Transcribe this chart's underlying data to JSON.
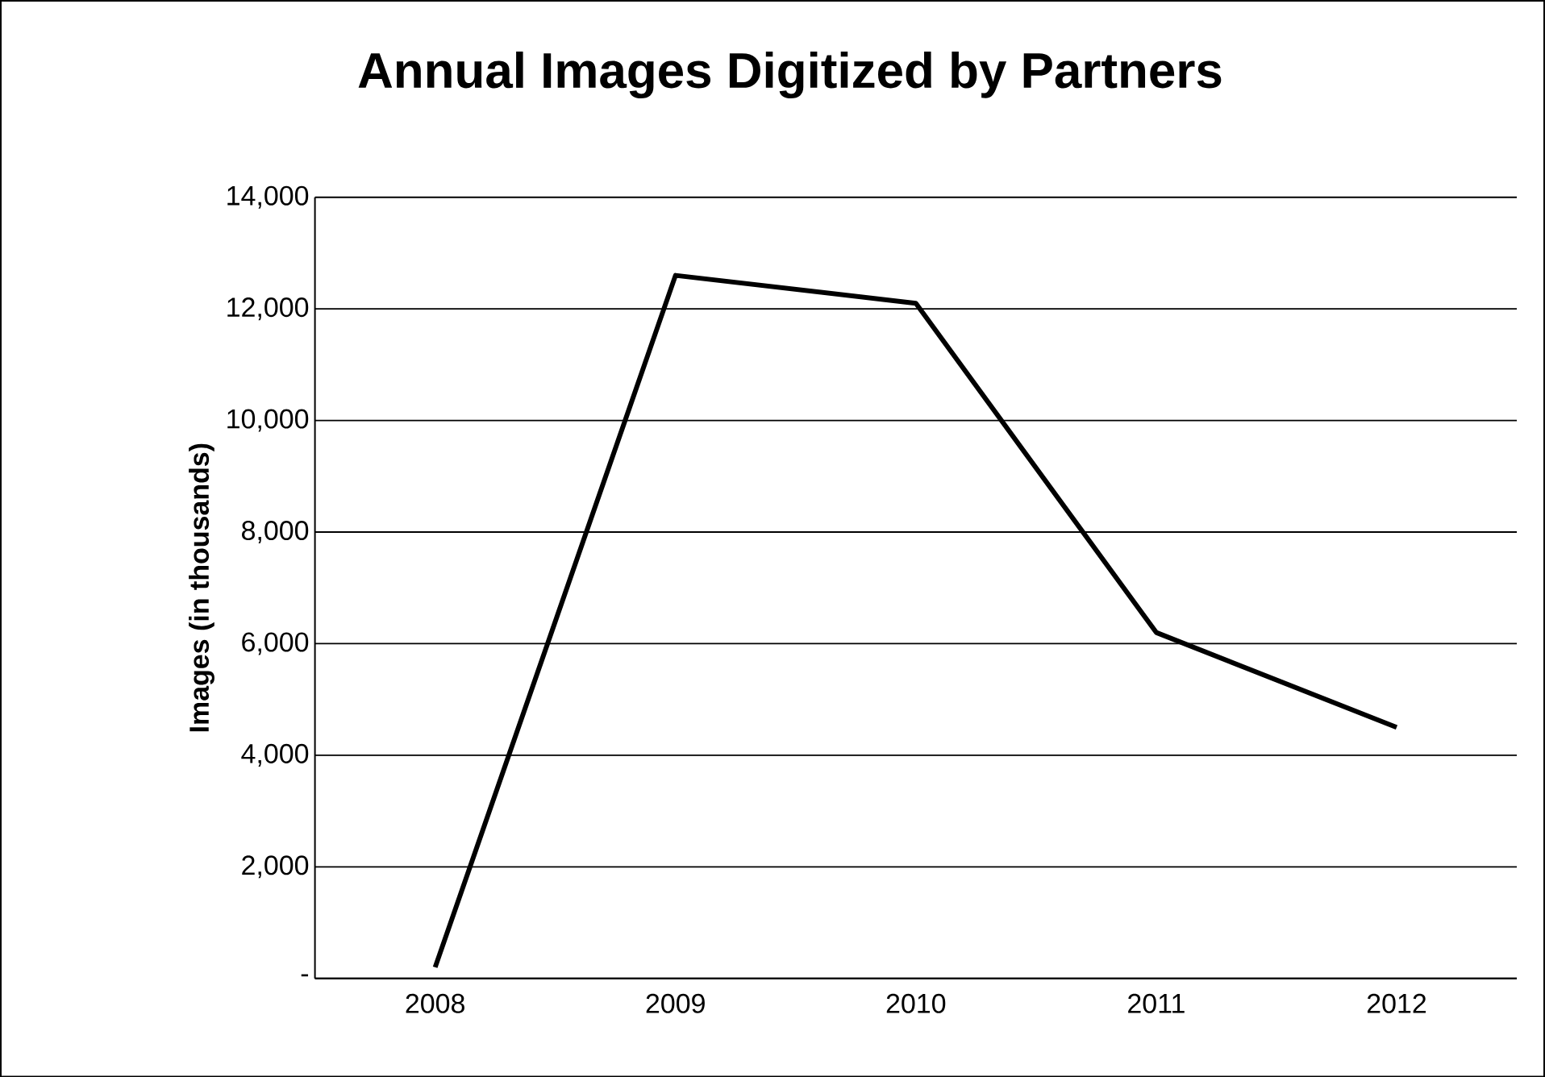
{
  "chart_data": {
    "type": "line",
    "title": "Annual Images Digitized by Partners",
    "ylabel": "Images (in thousands)",
    "categories": [
      "2008",
      "2009",
      "2010",
      "2011",
      "2012"
    ],
    "series": [
      {
        "color": "#000000",
        "values": [
          200,
          12600,
          12100,
          6200,
          4500
        ]
      }
    ],
    "ylim": [
      0,
      14000
    ],
    "yticks": [
      {
        "value": 0,
        "label": "-"
      },
      {
        "value": 2000,
        "label": "2,000"
      },
      {
        "value": 4000,
        "label": "4,000"
      },
      {
        "value": 6000,
        "label": "6,000"
      },
      {
        "value": 8000,
        "label": "8,000"
      },
      {
        "value": 10000,
        "label": "10,000"
      },
      {
        "value": 12000,
        "label": "12,000"
      },
      {
        "value": 14000,
        "label": "14,000"
      }
    ],
    "grid": "y",
    "marker": "none",
    "line_style": "solid"
  }
}
